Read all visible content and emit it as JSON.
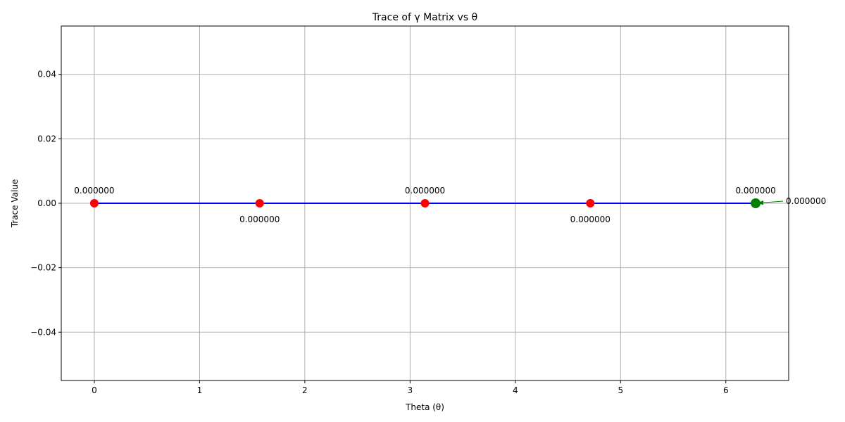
{
  "chart_data": {
    "type": "line",
    "title": "Trace of γ Matrix vs θ",
    "xlabel": "Theta (θ)",
    "ylabel": "Trace Value",
    "xlim": [
      -0.314,
      6.597
    ],
    "ylim": [
      -0.055,
      0.055
    ],
    "x_ticks": [
      0,
      1,
      2,
      3,
      4,
      5,
      6
    ],
    "y_ticks": [
      -0.04,
      -0.02,
      0.0,
      0.02,
      0.04
    ],
    "x_tick_labels": [
      "0",
      "1",
      "2",
      "3",
      "4",
      "5",
      "6"
    ],
    "y_tick_labels": [
      "−0.04",
      "−0.02",
      "0.00",
      "0.02",
      "0.04"
    ],
    "grid": true,
    "line_color": "#0000ff",
    "series": [
      {
        "x": [
          0,
          1.5708,
          3.1416,
          4.7124,
          6.2832
        ],
        "y": [
          0,
          0,
          0,
          0,
          0
        ],
        "point_colors": [
          "#ff0000",
          "#ff0000",
          "#ff0000",
          "#ff0000",
          "#008000"
        ],
        "point_labels": [
          "0.000000",
          "0.000000",
          "0.000000",
          "0.000000",
          "0.000000"
        ],
        "label_placement": [
          "above",
          "below",
          "above",
          "below",
          "above"
        ]
      }
    ],
    "annotation": {
      "text": "0.000000",
      "x": 6.2832,
      "y": 0,
      "arrow_color": "#008000"
    }
  }
}
